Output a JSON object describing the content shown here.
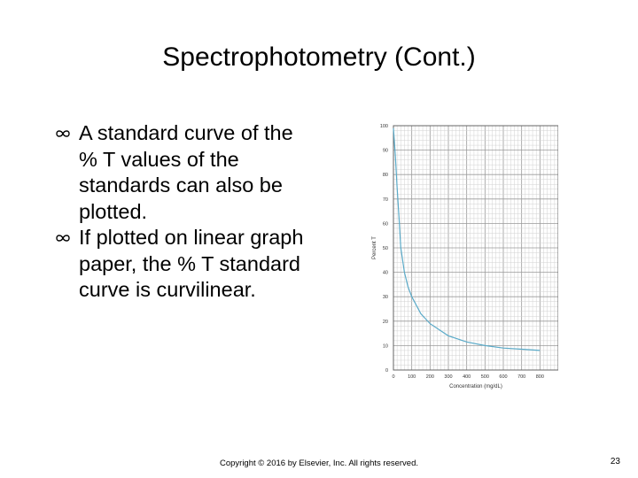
{
  "slide": {
    "title": "Spectrophotometry (Cont.)",
    "bullets": [
      "A standard curve of the % T values of the standards can also be plotted.",
      "If plotted on linear graph paper, the % T standard curve is curvilinear."
    ],
    "bullet_icon": "infinity-bullet-icon",
    "footer": "Copyright © 2016 by Elsevier, Inc. All rights reserved.",
    "page_number": "23"
  },
  "chart_data": {
    "type": "line",
    "title": "",
    "xlabel": "Concentration (mg/dL)",
    "ylabel": "Percent T",
    "xlim": [
      0,
      900
    ],
    "ylim": [
      0,
      100
    ],
    "grid": true,
    "x_ticks": [
      "0",
      "100",
      "200",
      "300",
      "400",
      "500",
      "600",
      "700",
      "800"
    ],
    "y_ticks": [
      "0",
      "10",
      "20",
      "30",
      "40",
      "50",
      "60",
      "70",
      "80",
      "90",
      "100"
    ],
    "series": [
      {
        "color": "#5aaac8",
        "x": [
          0,
          10,
          20,
          30,
          40,
          60,
          80,
          100,
          150,
          200,
          300,
          400,
          500,
          600,
          700,
          800
        ],
        "y": [
          99,
          88,
          75,
          63,
          50,
          40,
          34,
          30,
          23,
          19,
          14,
          11.5,
          10,
          9,
          8.5,
          8
        ]
      }
    ]
  }
}
